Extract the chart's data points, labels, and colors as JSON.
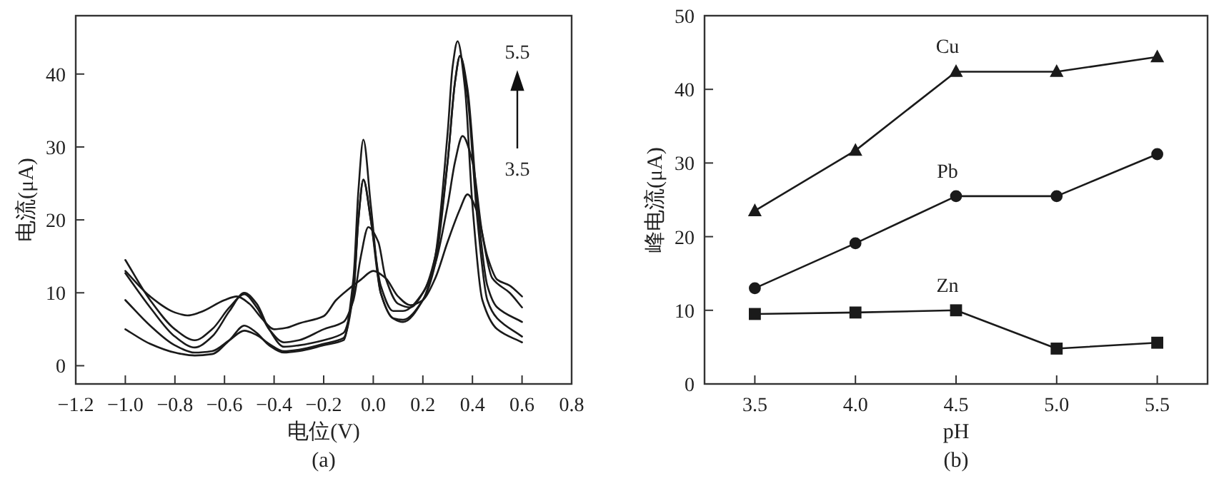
{
  "chart_data": [
    {
      "type": "line",
      "xlabel": "电位(V)",
      "ylabel": "电流(μA)",
      "xlim": [
        -1.2,
        0.8
      ],
      "ylim": [
        -2.5,
        48
      ],
      "xticks": [
        {
          "value": -1.2,
          "label": "−1.2"
        },
        {
          "value": -1.0,
          "label": "−1.0"
        },
        {
          "value": -0.8,
          "label": "−0.8"
        },
        {
          "value": -0.6,
          "label": "−0.6"
        },
        {
          "value": -0.4,
          "label": "−0.4"
        },
        {
          "value": -0.2,
          "label": "−0.2"
        },
        {
          "value": 0,
          "label": "0.0"
        },
        {
          "value": 0.2,
          "label": "0.2"
        },
        {
          "value": 0.4,
          "label": "0.4"
        },
        {
          "value": 0.6,
          "label": "0.6"
        },
        {
          "value": 0.8,
          "label": "0.8"
        }
      ],
      "yticks": [
        0,
        10,
        20,
        30,
        40
      ],
      "marker": "none",
      "line_style": "solid",
      "annotations": [
        "5.5",
        "3.5",
        "(a)"
      ],
      "series": [
        {
          "color": "#1a1a1a",
          "x": [
            -1.0,
            -0.9,
            -0.8,
            -0.75,
            -0.7,
            -0.6,
            -0.55,
            -0.5,
            -0.45,
            -0.4,
            -0.35,
            -0.3,
            -0.2,
            -0.15,
            -0.1,
            -0.05,
            0.0,
            0.05,
            0.1,
            0.15,
            0.2,
            0.25,
            0.3,
            0.35,
            0.38,
            0.42,
            0.46,
            0.5,
            0.55,
            0.6
          ],
          "values": [
            13,
            9.5,
            7.3,
            6.9,
            7.3,
            9,
            9.5,
            8.5,
            6.5,
            5,
            5.2,
            5.8,
            6.8,
            9,
            10.5,
            11.8,
            13,
            12,
            9.5,
            8.3,
            9,
            12,
            17,
            21.5,
            23.5,
            21,
            15,
            11.8,
            11,
            9.5
          ]
        },
        {
          "color": "#1a1a1a",
          "x": [
            -1.0,
            -0.9,
            -0.8,
            -0.72,
            -0.65,
            -0.58,
            -0.52,
            -0.47,
            -0.42,
            -0.36,
            -0.3,
            -0.2,
            -0.12,
            -0.08,
            -0.05,
            -0.02,
            0.02,
            0.05,
            0.1,
            0.15,
            0.2,
            0.25,
            0.3,
            0.33,
            0.36,
            0.4,
            0.44,
            0.48,
            0.55,
            0.6
          ],
          "values": [
            14.5,
            9,
            5,
            3.5,
            5,
            8,
            9.8,
            8,
            5,
            3.2,
            3.5,
            5,
            6,
            9,
            15,
            19,
            17,
            12,
            8.5,
            8,
            10,
            14,
            22,
            28,
            31.5,
            28,
            18,
            12,
            10,
            8
          ]
        },
        {
          "color": "#1a1a1a",
          "x": [
            -1.0,
            -0.9,
            -0.8,
            -0.72,
            -0.65,
            -0.58,
            -0.52,
            -0.47,
            -0.42,
            -0.36,
            -0.3,
            -0.2,
            -0.12,
            -0.08,
            -0.06,
            -0.04,
            -0.01,
            0.03,
            0.08,
            0.12,
            0.2,
            0.25,
            0.3,
            0.33,
            0.35,
            0.38,
            0.42,
            0.46,
            0.5,
            0.6
          ],
          "values": [
            12.7,
            8,
            4,
            2.5,
            4,
            7.5,
            10,
            8.5,
            5,
            2.6,
            2.8,
            3.5,
            4.5,
            10,
            20,
            25.5,
            20,
            11,
            7.5,
            7.5,
            10,
            15,
            28,
            39,
            42.5,
            38,
            22,
            11,
            8,
            6
          ]
        },
        {
          "color": "#1a1a1a",
          "x": [
            -1.0,
            -0.9,
            -0.8,
            -0.72,
            -0.65,
            -0.58,
            -0.52,
            -0.47,
            -0.42,
            -0.36,
            -0.3,
            -0.2,
            -0.12,
            -0.08,
            -0.06,
            -0.04,
            -0.01,
            0.03,
            0.08,
            0.12,
            0.2,
            0.25,
            0.3,
            0.33,
            0.35,
            0.38,
            0.42,
            0.46,
            0.5,
            0.6
          ],
          "values": [
            9,
            5.5,
            2.8,
            1.8,
            2,
            3.5,
            4.8,
            4.2,
            3,
            2,
            2.2,
            3,
            3.8,
            10,
            20,
            25.5,
            20,
            10,
            6.5,
            6.3,
            9,
            14,
            28,
            39,
            42.5,
            37,
            20,
            9,
            6.5,
            4
          ]
        },
        {
          "color": "#1a1a1a",
          "x": [
            -1.0,
            -0.9,
            -0.8,
            -0.72,
            -0.65,
            -0.58,
            -0.52,
            -0.47,
            -0.42,
            -0.36,
            -0.3,
            -0.2,
            -0.12,
            -0.08,
            -0.06,
            -0.04,
            -0.01,
            0.03,
            0.08,
            0.12,
            0.2,
            0.25,
            0.3,
            0.32,
            0.34,
            0.37,
            0.4,
            0.44,
            0.5,
            0.6
          ],
          "values": [
            5,
            3,
            1.8,
            1.4,
            1.6,
            3.5,
            5.5,
            4.5,
            2.8,
            1.8,
            2,
            2.8,
            3.5,
            12,
            24,
            31,
            22,
            10,
            6.5,
            6,
            9,
            15,
            32,
            41,
            44.5,
            38,
            22,
            9,
            5,
            3.2
          ]
        }
      ]
    },
    {
      "type": "line",
      "xlabel": "pH",
      "ylabel": "峰电流(μA)",
      "xlim": [
        3.25,
        5.75
      ],
      "ylim": [
        0,
        50
      ],
      "xticks": [
        {
          "value": 3.5,
          "label": "3.5"
        },
        {
          "value": 4.0,
          "label": "4.0"
        },
        {
          "value": 4.5,
          "label": "4.5"
        },
        {
          "value": 5.0,
          "label": "5.0"
        },
        {
          "value": 5.5,
          "label": "5.5"
        }
      ],
      "yticks": [
        0,
        10,
        20,
        30,
        40,
        50
      ],
      "line_style": "solid",
      "annotations": [
        "(b)"
      ],
      "x": [
        3.5,
        4.0,
        4.5,
        5.0,
        5.5
      ],
      "series": [
        {
          "name": "Cu",
          "color": "#1a1a1a",
          "marker": "triangle",
          "values": [
            23.5,
            31.7,
            42.4,
            42.4,
            44.4
          ]
        },
        {
          "name": "Pb",
          "color": "#1a1a1a",
          "marker": "circle",
          "values": [
            13,
            19.1,
            25.5,
            25.5,
            31.2
          ]
        },
        {
          "name": "Zn",
          "color": "#1a1a1a",
          "marker": "square",
          "values": [
            9.5,
            9.7,
            10,
            4.8,
            5.6
          ]
        }
      ]
    }
  ]
}
